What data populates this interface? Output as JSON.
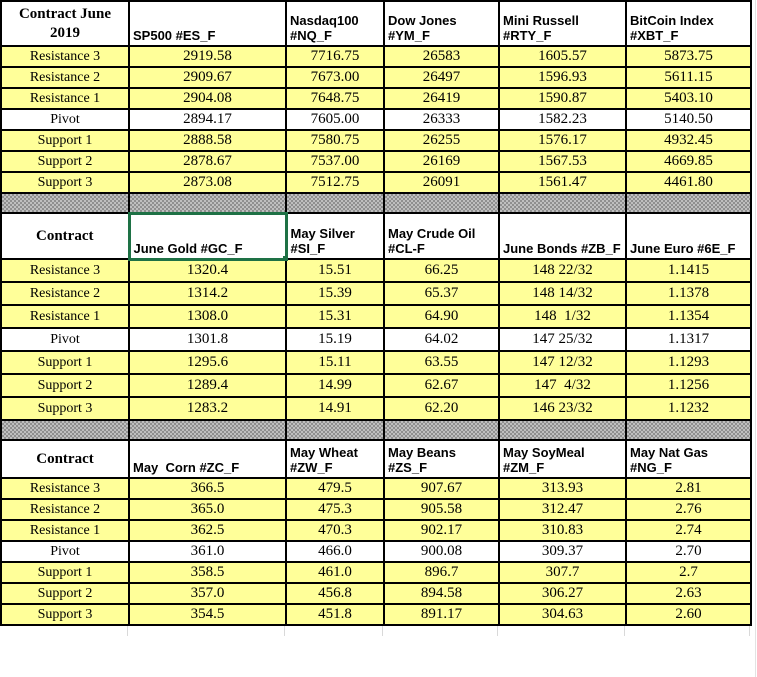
{
  "sheet": {
    "colors": {
      "row_highlight": "#FFFF99",
      "separator_gray": "#ACACAC",
      "selection_green": "#1E7145",
      "grid_border": "#000000"
    },
    "sections": [
      {
        "title": "Contract June 2019",
        "columns": [
          "SP500 #ES_F",
          "Nasdaq100 #NQ_F",
          "Dow Jones #YM_F",
          "Mini Russell #RTY_F",
          "BitCoin Index #XBT_F"
        ],
        "rows": [
          {
            "label": "Resistance 3",
            "values": [
              "2919.58",
              "7716.75",
              "26583",
              "1605.57",
              "5873.75"
            ]
          },
          {
            "label": "Resistance 2",
            "values": [
              "2909.67",
              "7673.00",
              "26497",
              "1596.93",
              "5611.15"
            ]
          },
          {
            "label": "Resistance 1",
            "values": [
              "2904.08",
              "7648.75",
              "26419",
              "1590.87",
              "5403.10"
            ]
          },
          {
            "label": "Pivot",
            "values": [
              "2894.17",
              "7605.00",
              "26333",
              "1582.23",
              "5140.50"
            ]
          },
          {
            "label": "Support 1",
            "values": [
              "2888.58",
              "7580.75",
              "26255",
              "1576.17",
              "4932.45"
            ]
          },
          {
            "label": "Support 2",
            "values": [
              "2878.67",
              "7537.00",
              "26169",
              "1567.53",
              "4669.85"
            ]
          },
          {
            "label": "Support 3",
            "values": [
              "2873.08",
              "7512.75",
              "26091",
              "1561.47",
              "4461.80"
            ]
          }
        ]
      },
      {
        "title": "Contract",
        "columns": [
          "June Gold #GC_F",
          "May Silver #SI_F",
          "May Crude Oil #CL-F",
          "June Bonds #ZB_F",
          "June Euro #6E_F"
        ],
        "selected_column": 0,
        "rows": [
          {
            "label": "Resistance 3",
            "values": [
              "1320.4",
              "15.51",
              "66.25",
              "148 22/32",
              "1.1415"
            ]
          },
          {
            "label": "Resistance 2",
            "values": [
              "1314.2",
              "15.39",
              "65.37",
              "148 14/32",
              "1.1378"
            ]
          },
          {
            "label": "Resistance 1",
            "values": [
              "1308.0",
              "15.31",
              "64.90",
              "148  1/32",
              "1.1354"
            ]
          },
          {
            "label": "Pivot",
            "values": [
              "1301.8",
              "15.19",
              "64.02",
              "147 25/32",
              "1.1317"
            ]
          },
          {
            "label": "Support 1",
            "values": [
              "1295.6",
              "15.11",
              "63.55",
              "147 12/32",
              "1.1293"
            ]
          },
          {
            "label": "Support 2",
            "values": [
              "1289.4",
              "14.99",
              "62.67",
              "147  4/32",
              "1.1256"
            ]
          },
          {
            "label": "Support 3",
            "values": [
              "1283.2",
              "14.91",
              "62.20",
              "146 23/32",
              "1.1232"
            ]
          }
        ]
      },
      {
        "title": "Contract",
        "columns": [
          "May  Corn #ZC_F",
          "May Wheat #ZW_F",
          "May Beans #ZS_F",
          "May SoyMeal #ZM_F",
          "May Nat Gas #NG_F"
        ],
        "rows": [
          {
            "label": "Resistance 3",
            "values": [
              "366.5",
              "479.5",
              "907.67",
              "313.93",
              "2.81"
            ]
          },
          {
            "label": "Resistance 2",
            "values": [
              "365.0",
              "475.3",
              "905.58",
              "312.47",
              "2.76"
            ]
          },
          {
            "label": "Resistance 1",
            "values": [
              "362.5",
              "470.3",
              "902.17",
              "310.83",
              "2.74"
            ]
          },
          {
            "label": "Pivot",
            "values": [
              "361.0",
              "466.0",
              "900.08",
              "309.37",
              "2.70"
            ]
          },
          {
            "label": "Support 1",
            "values": [
              "358.5",
              "461.0",
              "896.7",
              "307.7",
              "2.7"
            ]
          },
          {
            "label": "Support 2",
            "values": [
              "357.0",
              "456.8",
              "894.58",
              "306.27",
              "2.63"
            ]
          },
          {
            "label": "Support 3",
            "values": [
              "354.5",
              "451.8",
              "891.17",
              "304.63",
              "2.60"
            ]
          }
        ]
      }
    ]
  }
}
